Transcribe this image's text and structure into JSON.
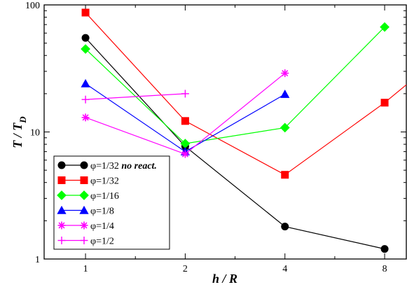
{
  "chart_data": {
    "type": "line",
    "xscale": "log2",
    "yscale": "log10",
    "xlim": [
      0.75,
      9.3
    ],
    "ylim": [
      1,
      100
    ],
    "xticks": [
      1,
      2,
      4,
      8
    ],
    "xtick_labels": [
      "1",
      "2",
      "4",
      "8"
    ],
    "yticks": [
      1,
      10,
      100
    ],
    "ytick_labels": [
      "1",
      "10",
      "100"
    ],
    "xlabel": "h / R",
    "ylabel_main": "T / T",
    "ylabel_sub": "D",
    "legend_position": "bottom-left",
    "series": [
      {
        "name": "φ=1/32",
        "name_suffix": "no react.",
        "color": "#000000",
        "marker": "circle",
        "x": [
          1,
          2,
          4,
          8
        ],
        "y": [
          55,
          7.7,
          1.8,
          1.2
        ],
        "extend_to": null
      },
      {
        "name": "φ=1/32",
        "name_suffix": "",
        "color": "#ff0000",
        "marker": "square",
        "x": [
          1,
          2,
          4,
          8
        ],
        "y": [
          87,
          12.2,
          4.6,
          17
        ],
        "extend_to": [
          9.3,
          23.5
        ]
      },
      {
        "name": "φ=1/16",
        "name_suffix": "",
        "color": "#00ff00",
        "marker": "diamond",
        "x": [
          1,
          2,
          4,
          8
        ],
        "y": [
          45,
          8.1,
          10.8,
          67
        ],
        "extend_to": null
      },
      {
        "name": "φ=1/8",
        "name_suffix": "",
        "color": "#0000ff",
        "marker": "triangle",
        "x": [
          1,
          2,
          4
        ],
        "y": [
          24,
          7,
          19.8
        ],
        "extend_to": null
      },
      {
        "name": "φ=1/4",
        "name_suffix": "",
        "color": "#ff00ff",
        "marker": "star",
        "x": [
          1,
          2,
          4
        ],
        "y": [
          13,
          6.7,
          29
        ],
        "extend_to": null
      },
      {
        "name": "φ=1/2",
        "name_suffix": "",
        "color": "#ff00ff",
        "marker": "plus",
        "x": [
          1,
          2
        ],
        "y": [
          18,
          20
        ],
        "extend_to": null
      }
    ]
  }
}
